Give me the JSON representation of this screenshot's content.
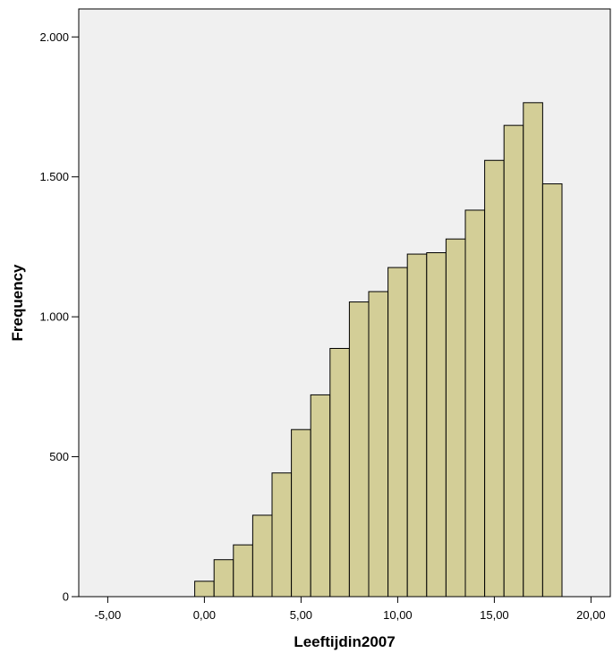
{
  "chart_data": {
    "type": "bar",
    "subtype": "histogram",
    "xlabel": "Leeftijdin2007",
    "ylabel": "Frequency",
    "xlim": [
      -6.5,
      21
    ],
    "ylim": [
      0,
      2100
    ],
    "x_ticks": [
      -5,
      0,
      5,
      10,
      15,
      20
    ],
    "x_tick_labels": [
      "-5,00",
      "0,00",
      "5,00",
      "10,00",
      "15,00",
      "20,00"
    ],
    "y_ticks": [
      0,
      500,
      1000,
      1500,
      2000
    ],
    "y_tick_labels": [
      "0",
      "500",
      "1.000",
      "1.500",
      "2.000"
    ],
    "bins": [
      {
        "start": -0.5,
        "end": 0.5,
        "value": 55
      },
      {
        "start": 0.5,
        "end": 1.5,
        "value": 132
      },
      {
        "start": 1.5,
        "end": 2.5,
        "value": 185
      },
      {
        "start": 2.5,
        "end": 3.5,
        "value": 291
      },
      {
        "start": 3.5,
        "end": 4.5,
        "value": 442
      },
      {
        "start": 4.5,
        "end": 5.5,
        "value": 597
      },
      {
        "start": 5.5,
        "end": 6.5,
        "value": 721
      },
      {
        "start": 6.5,
        "end": 7.5,
        "value": 887
      },
      {
        "start": 7.5,
        "end": 8.5,
        "value": 1053
      },
      {
        "start": 8.5,
        "end": 9.5,
        "value": 1090
      },
      {
        "start": 9.5,
        "end": 10.5,
        "value": 1176
      },
      {
        "start": 10.5,
        "end": 11.5,
        "value": 1224
      },
      {
        "start": 11.5,
        "end": 12.5,
        "value": 1229
      },
      {
        "start": 12.5,
        "end": 13.5,
        "value": 1278
      },
      {
        "start": 13.5,
        "end": 14.5,
        "value": 1381
      },
      {
        "start": 14.5,
        "end": 15.5,
        "value": 1559
      },
      {
        "start": 15.5,
        "end": 16.5,
        "value": 1684
      },
      {
        "start": 16.5,
        "end": 17.5,
        "value": 1765
      },
      {
        "start": 17.5,
        "end": 18.5,
        "value": 1475
      }
    ],
    "grid": false,
    "legend": "none"
  },
  "colors": {
    "plot_background": "#f0f0f0",
    "bar_fill": "#d3ce97",
    "bar_stroke": "#000000",
    "axis": "#000000"
  }
}
